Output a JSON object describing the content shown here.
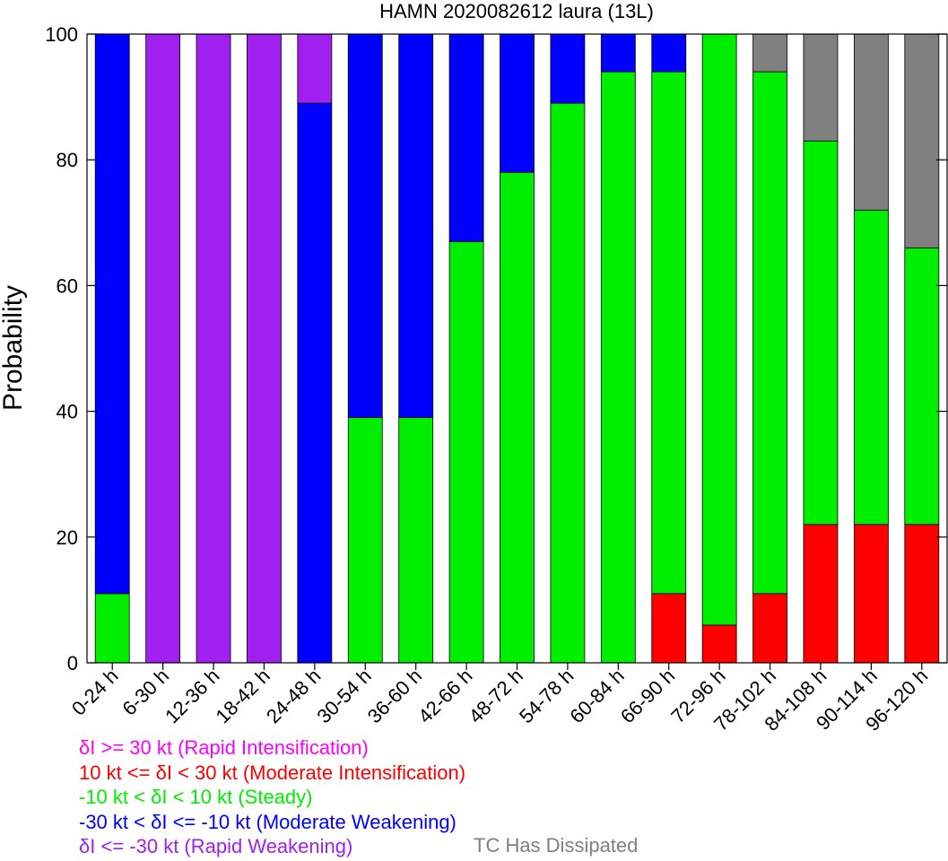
{
  "chart_data": {
    "type": "bar",
    "stacked": true,
    "title": "HAMN 2020082612 laura (13L)",
    "ylabel": "Probability",
    "ylim": [
      0,
      100
    ],
    "yticks": [
      "0",
      "20",
      "40",
      "60",
      "80",
      "100"
    ],
    "categories": [
      "0-24 h",
      "6-30 h",
      "12-36 h",
      "18-42 h",
      "24-48 h",
      "30-54 h",
      "36-60 h",
      "42-66 h",
      "48-72 h",
      "54-78 h",
      "60-84 h",
      "66-90 h",
      "72-96 h",
      "78-102 h",
      "84-108 h",
      "90-114 h",
      "96-120 h"
    ],
    "series": [
      {
        "name": "δI >= 30 kt (Rapid Intensification)",
        "color": "#ff00ff",
        "values": [
          0,
          0,
          0,
          0,
          0,
          0,
          0,
          0,
          0,
          0,
          0,
          0,
          0,
          0,
          0,
          0,
          0
        ]
      },
      {
        "name": "10 kt <= δI < 30 kt (Moderate Intensification)",
        "color": "#ff0000",
        "values": [
          0,
          0,
          0,
          0,
          0,
          0,
          0,
          0,
          0,
          0,
          0,
          11,
          6,
          11,
          22,
          22,
          22
        ]
      },
      {
        "name": "-10 kt < δI < 10 kt (Steady)",
        "color": "#00ee00",
        "values": [
          11,
          0,
          0,
          0,
          0,
          39,
          39,
          67,
          78,
          89,
          94,
          83,
          94,
          83,
          61,
          50,
          44
        ]
      },
      {
        "name": "-30 kt < δI <= -10 kt (Moderate Weakening)",
        "color": "#0000ff",
        "values": [
          89,
          0,
          0,
          0,
          89,
          61,
          61,
          33,
          22,
          11,
          6,
          6,
          0,
          0,
          0,
          0,
          0
        ]
      },
      {
        "name": "δI <= -30 kt (Rapid Weakening)",
        "color": "#a020f0",
        "values": [
          0,
          100,
          100,
          100,
          11,
          0,
          0,
          0,
          0,
          0,
          0,
          0,
          0,
          0,
          0,
          0,
          0
        ]
      },
      {
        "name": "TC Has Dissipated",
        "color": "#808080",
        "values": [
          0,
          0,
          0,
          0,
          0,
          0,
          0,
          0,
          0,
          0,
          0,
          0,
          0,
          6,
          17,
          28,
          34
        ]
      }
    ],
    "legend": {
      "placement": "bottom",
      "items": [
        {
          "text": "δI >= 30 kt (Rapid Intensification)",
          "color": "#ff00ff"
        },
        {
          "text": "10 kt <= δI < 30 kt (Moderate Intensification)",
          "color": "#ff0000"
        },
        {
          "text": "-10 kt < δI < 10 kt (Steady)",
          "color": "#00ee00"
        },
        {
          "text": "-30 kt < δI <= -10 kt (Moderate Weakening)",
          "color": "#0000ff"
        },
        {
          "text": "δI <= -30 kt (Rapid Weakening)",
          "color": "#a020f0"
        },
        {
          "text": "TC Has Dissipated",
          "color": "#808080"
        }
      ]
    },
    "grid": false
  }
}
